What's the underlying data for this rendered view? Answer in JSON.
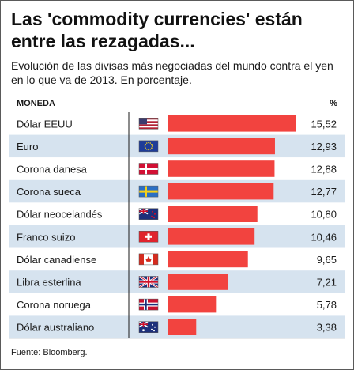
{
  "title": "Las 'commodity currencies' están entre las rezagadas...",
  "subtitle": "Evolución de las divisas más negociadas del mundo contra el yen en lo que va de 2013. En porcentaje.",
  "source": "Fuente: Bloomberg.",
  "colors": {
    "bar": "#f2433f",
    "row_shade": "#d6e3ef",
    "row_white": "#ffffff",
    "divider": "#1a1a1a"
  },
  "chart_data": {
    "type": "bar",
    "orientation": "horizontal",
    "header_left": "MONEDA",
    "header_right": "%",
    "categories": [
      "Dólar EEUU",
      "Euro",
      "Corona danesa",
      "Corona sueca",
      "Dólar neocelandés",
      "Franco suizo",
      "Dólar canadiense",
      "Libra esterlina",
      "Corona noruega",
      "Dólar australiano"
    ],
    "flags": [
      "flag-usa-icon",
      "flag-eu-icon",
      "flag-denmark-icon",
      "flag-sweden-icon",
      "flag-newzealand-icon",
      "flag-switzerland-icon",
      "flag-canada-icon",
      "flag-uk-icon",
      "flag-norway-icon",
      "flag-australia-icon"
    ],
    "values": [
      15.52,
      12.93,
      12.88,
      12.77,
      10.8,
      10.46,
      9.65,
      7.21,
      5.78,
      3.38
    ],
    "value_labels": [
      "15,52",
      "12,93",
      "12,88",
      "12,77",
      "10,80",
      "10,46",
      "9,65",
      "7,21",
      "5,78",
      "3,38"
    ],
    "xlim": [
      0,
      15.52
    ],
    "grid": false,
    "legend": "none"
  }
}
